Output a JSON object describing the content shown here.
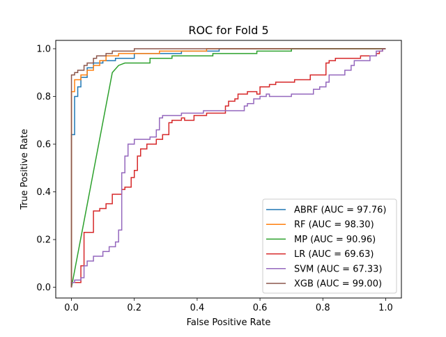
{
  "chart_data": {
    "type": "line",
    "title": "ROC for Fold 5",
    "xlabel": "False Positive Rate",
    "ylabel": "True Positive Rate",
    "xlim": [
      -0.05,
      1.05
    ],
    "ylim": [
      -0.045,
      1.035
    ],
    "xticks": [
      0.0,
      0.2,
      0.4,
      0.6,
      0.8,
      1.0
    ],
    "xtick_labels": [
      "0.0",
      "0.2",
      "0.4",
      "0.6",
      "0.8",
      "1.0"
    ],
    "yticks": [
      0.0,
      0.2,
      0.4,
      0.6,
      0.8,
      1.0
    ],
    "ytick_labels": [
      "0.0",
      "0.2",
      "0.4",
      "0.6",
      "0.8",
      "1.0"
    ],
    "grid": false,
    "legend_position": "lower-right",
    "series": [
      {
        "name": "ABRF (AUC = 97.76)",
        "color": "#1f77b4",
        "points": [
          [
            0,
            0
          ],
          [
            0,
            0.64
          ],
          [
            0.01,
            0.64
          ],
          [
            0.01,
            0.8
          ],
          [
            0.02,
            0.8
          ],
          [
            0.02,
            0.84
          ],
          [
            0.03,
            0.84
          ],
          [
            0.03,
            0.88
          ],
          [
            0.05,
            0.88
          ],
          [
            0.05,
            0.92
          ],
          [
            0.07,
            0.92
          ],
          [
            0.07,
            0.94
          ],
          [
            0.1,
            0.94
          ],
          [
            0.1,
            0.95
          ],
          [
            0.14,
            0.95
          ],
          [
            0.14,
            0.96
          ],
          [
            0.2,
            0.96
          ],
          [
            0.2,
            0.98
          ],
          [
            0.35,
            0.98
          ],
          [
            0.35,
            0.99
          ],
          [
            0.47,
            0.99
          ],
          [
            0.47,
            1.0
          ],
          [
            1.0,
            1.0
          ]
        ]
      },
      {
        "name": "RF (AUC = 98.30)",
        "color": "#ff7f0e",
        "points": [
          [
            0,
            0
          ],
          [
            0,
            0.82
          ],
          [
            0.01,
            0.82
          ],
          [
            0.01,
            0.87
          ],
          [
            0.03,
            0.87
          ],
          [
            0.03,
            0.89
          ],
          [
            0.05,
            0.89
          ],
          [
            0.05,
            0.91
          ],
          [
            0.07,
            0.91
          ],
          [
            0.07,
            0.93
          ],
          [
            0.09,
            0.93
          ],
          [
            0.09,
            0.95
          ],
          [
            0.11,
            0.95
          ],
          [
            0.11,
            0.97
          ],
          [
            0.15,
            0.97
          ],
          [
            0.15,
            0.98
          ],
          [
            0.28,
            0.98
          ],
          [
            0.28,
            0.99
          ],
          [
            0.43,
            0.99
          ],
          [
            0.43,
            1.0
          ],
          [
            1.0,
            1.0
          ]
        ]
      },
      {
        "name": "MP (AUC = 90.96)",
        "color": "#2ca02c",
        "points": [
          [
            0,
            0
          ],
          [
            0.13,
            0.9
          ],
          [
            0.15,
            0.93
          ],
          [
            0.17,
            0.94
          ],
          [
            0.25,
            0.94
          ],
          [
            0.25,
            0.96
          ],
          [
            0.32,
            0.96
          ],
          [
            0.32,
            0.97
          ],
          [
            0.45,
            0.97
          ],
          [
            0.45,
            0.98
          ],
          [
            0.59,
            0.98
          ],
          [
            0.59,
            0.99
          ],
          [
            0.7,
            0.99
          ],
          [
            0.7,
            1.0
          ],
          [
            1.0,
            1.0
          ]
        ]
      },
      {
        "name": "LR (AUC = 69.63)",
        "color": "#d62728",
        "points": [
          [
            0,
            0
          ],
          [
            0,
            0.02
          ],
          [
            0.03,
            0.02
          ],
          [
            0.03,
            0.09
          ],
          [
            0.04,
            0.09
          ],
          [
            0.04,
            0.23
          ],
          [
            0.07,
            0.23
          ],
          [
            0.07,
            0.32
          ],
          [
            0.09,
            0.32
          ],
          [
            0.09,
            0.33
          ],
          [
            0.11,
            0.33
          ],
          [
            0.11,
            0.35
          ],
          [
            0.13,
            0.35
          ],
          [
            0.13,
            0.39
          ],
          [
            0.16,
            0.39
          ],
          [
            0.16,
            0.41
          ],
          [
            0.17,
            0.41
          ],
          [
            0.17,
            0.42
          ],
          [
            0.19,
            0.42
          ],
          [
            0.19,
            0.46
          ],
          [
            0.2,
            0.46
          ],
          [
            0.2,
            0.49
          ],
          [
            0.21,
            0.49
          ],
          [
            0.21,
            0.55
          ],
          [
            0.22,
            0.55
          ],
          [
            0.22,
            0.58
          ],
          [
            0.24,
            0.58
          ],
          [
            0.24,
            0.6
          ],
          [
            0.27,
            0.6
          ],
          [
            0.27,
            0.62
          ],
          [
            0.29,
            0.62
          ],
          [
            0.29,
            0.64
          ],
          [
            0.31,
            0.64
          ],
          [
            0.31,
            0.69
          ],
          [
            0.32,
            0.69
          ],
          [
            0.32,
            0.7
          ],
          [
            0.35,
            0.7
          ],
          [
            0.35,
            0.71
          ],
          [
            0.36,
            0.71
          ],
          [
            0.36,
            0.7
          ],
          [
            0.39,
            0.7
          ],
          [
            0.39,
            0.72
          ],
          [
            0.43,
            0.72
          ],
          [
            0.43,
            0.73
          ],
          [
            0.49,
            0.73
          ],
          [
            0.49,
            0.76
          ],
          [
            0.5,
            0.76
          ],
          [
            0.5,
            0.78
          ],
          [
            0.52,
            0.78
          ],
          [
            0.52,
            0.79
          ],
          [
            0.53,
            0.79
          ],
          [
            0.53,
            0.81
          ],
          [
            0.56,
            0.81
          ],
          [
            0.56,
            0.82
          ],
          [
            0.59,
            0.82
          ],
          [
            0.59,
            0.81
          ],
          [
            0.6,
            0.81
          ],
          [
            0.6,
            0.84
          ],
          [
            0.63,
            0.84
          ],
          [
            0.63,
            0.85
          ],
          [
            0.65,
            0.85
          ],
          [
            0.65,
            0.86
          ],
          [
            0.71,
            0.86
          ],
          [
            0.71,
            0.87
          ],
          [
            0.76,
            0.87
          ],
          [
            0.76,
            0.89
          ],
          [
            0.81,
            0.89
          ],
          [
            0.81,
            0.94
          ],
          [
            0.82,
            0.94
          ],
          [
            0.82,
            0.95
          ],
          [
            0.84,
            0.95
          ],
          [
            0.84,
            0.96
          ],
          [
            0.92,
            0.96
          ],
          [
            0.92,
            0.97
          ],
          [
            0.97,
            0.97
          ],
          [
            0.97,
            0.98
          ],
          [
            0.98,
            0.98
          ],
          [
            0.98,
            0.99
          ],
          [
            0.99,
            0.99
          ],
          [
            0.99,
            1.0
          ],
          [
            1.0,
            1.0
          ]
        ]
      },
      {
        "name": "SVM (AUC = 67.33)",
        "color": "#9467bd",
        "points": [
          [
            0,
            0
          ],
          [
            0,
            0.02
          ],
          [
            0.01,
            0.02
          ],
          [
            0.01,
            0.03
          ],
          [
            0.03,
            0.03
          ],
          [
            0.03,
            0.04
          ],
          [
            0.04,
            0.04
          ],
          [
            0.04,
            0.09
          ],
          [
            0.05,
            0.09
          ],
          [
            0.05,
            0.11
          ],
          [
            0.07,
            0.11
          ],
          [
            0.07,
            0.13
          ],
          [
            0.1,
            0.13
          ],
          [
            0.1,
            0.15
          ],
          [
            0.12,
            0.15
          ],
          [
            0.12,
            0.17
          ],
          [
            0.14,
            0.17
          ],
          [
            0.14,
            0.19
          ],
          [
            0.15,
            0.19
          ],
          [
            0.15,
            0.24
          ],
          [
            0.16,
            0.24
          ],
          [
            0.16,
            0.48
          ],
          [
            0.17,
            0.48
          ],
          [
            0.17,
            0.55
          ],
          [
            0.18,
            0.55
          ],
          [
            0.18,
            0.6
          ],
          [
            0.2,
            0.6
          ],
          [
            0.2,
            0.62
          ],
          [
            0.25,
            0.62
          ],
          [
            0.25,
            0.63
          ],
          [
            0.27,
            0.63
          ],
          [
            0.27,
            0.66
          ],
          [
            0.28,
            0.66
          ],
          [
            0.28,
            0.71
          ],
          [
            0.29,
            0.71
          ],
          [
            0.29,
            0.72
          ],
          [
            0.35,
            0.72
          ],
          [
            0.35,
            0.73
          ],
          [
            0.42,
            0.73
          ],
          [
            0.42,
            0.74
          ],
          [
            0.55,
            0.74
          ],
          [
            0.55,
            0.76
          ],
          [
            0.56,
            0.76
          ],
          [
            0.56,
            0.77
          ],
          [
            0.58,
            0.77
          ],
          [
            0.58,
            0.79
          ],
          [
            0.6,
            0.79
          ],
          [
            0.6,
            0.8
          ],
          [
            0.62,
            0.8
          ],
          [
            0.62,
            0.81
          ],
          [
            0.63,
            0.81
          ],
          [
            0.63,
            0.8
          ],
          [
            0.7,
            0.8
          ],
          [
            0.7,
            0.81
          ],
          [
            0.77,
            0.81
          ],
          [
            0.77,
            0.83
          ],
          [
            0.79,
            0.83
          ],
          [
            0.79,
            0.84
          ],
          [
            0.81,
            0.84
          ],
          [
            0.81,
            0.86
          ],
          [
            0.82,
            0.86
          ],
          [
            0.82,
            0.89
          ],
          [
            0.87,
            0.89
          ],
          [
            0.87,
            0.91
          ],
          [
            0.89,
            0.91
          ],
          [
            0.89,
            0.93
          ],
          [
            0.9,
            0.93
          ],
          [
            0.9,
            0.95
          ],
          [
            0.95,
            0.95
          ],
          [
            0.95,
            0.97
          ],
          [
            0.97,
            0.97
          ],
          [
            0.97,
            0.99
          ],
          [
            0.99,
            0.99
          ],
          [
            0.99,
            1.0
          ],
          [
            1.0,
            1.0
          ]
        ]
      },
      {
        "name": "XGB (AUC = 99.00)",
        "color": "#8c564b",
        "points": [
          [
            0,
            0
          ],
          [
            0,
            0.89
          ],
          [
            0.01,
            0.89
          ],
          [
            0.01,
            0.9
          ],
          [
            0.02,
            0.9
          ],
          [
            0.02,
            0.91
          ],
          [
            0.04,
            0.91
          ],
          [
            0.04,
            0.93
          ],
          [
            0.05,
            0.93
          ],
          [
            0.05,
            0.94
          ],
          [
            0.07,
            0.94
          ],
          [
            0.07,
            0.96
          ],
          [
            0.08,
            0.96
          ],
          [
            0.08,
            0.97
          ],
          [
            0.11,
            0.97
          ],
          [
            0.11,
            0.98
          ],
          [
            0.13,
            0.98
          ],
          [
            0.13,
            0.99
          ],
          [
            0.2,
            0.99
          ],
          [
            0.2,
            1.0
          ],
          [
            1.0,
            1.0
          ]
        ]
      }
    ]
  }
}
